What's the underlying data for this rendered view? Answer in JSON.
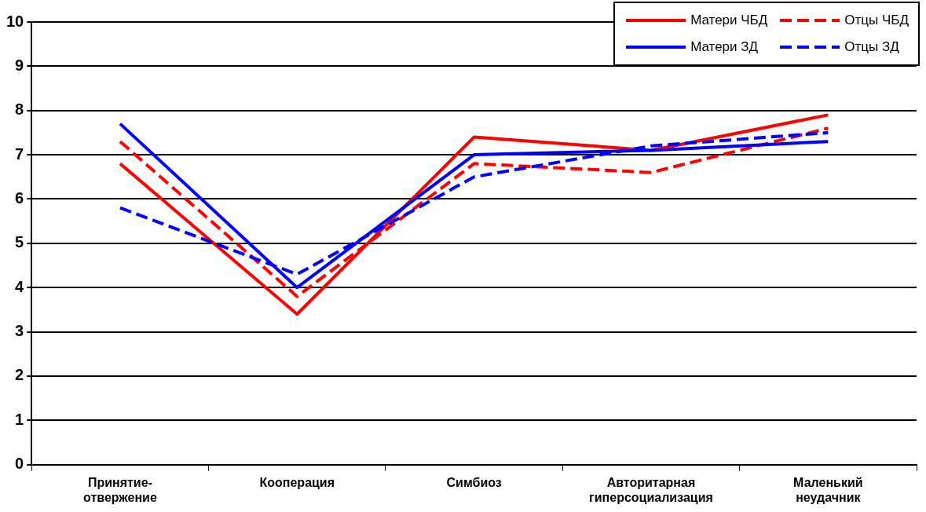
{
  "chart_data": {
    "type": "line",
    "categories": [
      "Принятие-отвержение",
      "Кооперация",
      "Симбиоз",
      "Авторитарная гиперсоциализация",
      "Маленький неудачник"
    ],
    "series": [
      {
        "name": "Матери ЧБД",
        "color": "#ff0000",
        "line_style": "solid",
        "values": [
          6.8,
          3.4,
          7.4,
          7.1,
          7.9
        ]
      },
      {
        "name": "Отцы ЧБД",
        "color": "#ff0000",
        "line_style": "dashed",
        "values": [
          7.3,
          3.8,
          6.8,
          6.6,
          7.6
        ]
      },
      {
        "name": "Матери ЗД",
        "color": "#0000ff",
        "line_style": "solid",
        "values": [
          7.7,
          4.0,
          7.0,
          7.1,
          7.3
        ]
      },
      {
        "name": "Отцы ЗД",
        "color": "#0000ff",
        "line_style": "dashed",
        "values": [
          5.8,
          4.3,
          6.5,
          7.2,
          7.5
        ]
      }
    ],
    "ylim": [
      0,
      10
    ],
    "yticks": [
      0,
      1,
      2,
      3,
      4,
      5,
      6,
      7,
      8,
      9,
      10
    ],
    "grid": "y",
    "legend": "top right",
    "marker": "none"
  }
}
